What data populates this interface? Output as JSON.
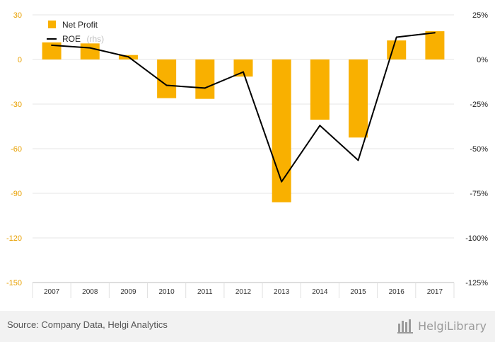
{
  "chart_data": {
    "type": "bar+line",
    "categories": [
      "2007",
      "2008",
      "2009",
      "2010",
      "2011",
      "2012",
      "2013",
      "2014",
      "2015",
      "2016",
      "2017"
    ],
    "series": [
      {
        "name": "Net Profit",
        "kind": "bar",
        "axis": "left",
        "color": "#f9b000",
        "values": [
          11.5,
          10.8,
          3.0,
          -26.0,
          -26.5,
          -11.5,
          -96.0,
          -40.5,
          -52.5,
          12.8,
          19.0
        ]
      },
      {
        "name": "ROE",
        "name_suffix": "(rhs)",
        "kind": "line",
        "axis": "right",
        "color": "#000000",
        "values": [
          8.0,
          6.5,
          1.5,
          -14.5,
          -16.0,
          -7.0,
          -68.5,
          -37.0,
          -56.5,
          12.5,
          15.0
        ]
      }
    ],
    "y_left": {
      "min": -150,
      "max": 30,
      "ticks": [
        30,
        0,
        -30,
        -60,
        -90,
        -120,
        -150
      ],
      "tick_labels": [
        "30",
        "0",
        "-30",
        "-60",
        "-90",
        "-120",
        "-150"
      ],
      "color": "#e8a000"
    },
    "y_right": {
      "min": -125,
      "max": 25,
      "ticks": [
        25,
        0,
        -25,
        -50,
        -75,
        -100,
        -125
      ],
      "tick_labels": [
        "25%",
        "0%",
        "-25%",
        "-50%",
        "-75%",
        "-100%",
        "-125%"
      ],
      "color": "#222222"
    },
    "grid": true,
    "legend_position": "top-left"
  },
  "footer": {
    "source": "Source: Company Data, Helgi Analytics",
    "brand": "HelgiLibrary"
  }
}
